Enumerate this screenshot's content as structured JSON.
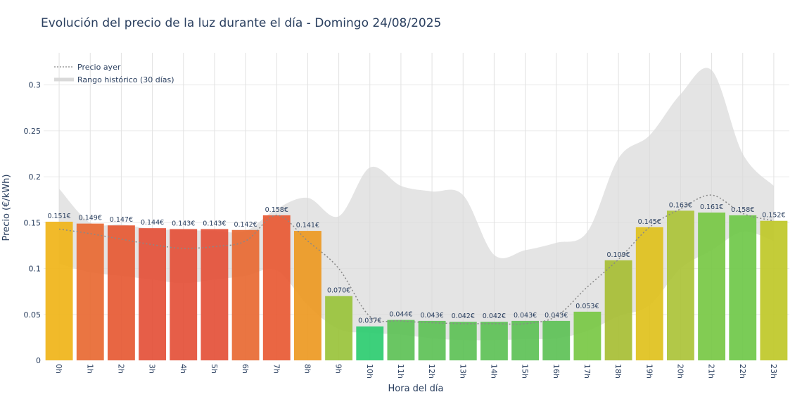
{
  "chart_data": {
    "type": "bar",
    "title": "Evolución del precio de la luz durante el día - Domingo 24/08/2025",
    "xlabel": "Hora del día",
    "ylabel": "Precio (€/kWh)",
    "ylim": [
      0,
      0.335
    ],
    "yticks": [
      0,
      0.05,
      0.1,
      0.15,
      0.2,
      0.25,
      0.3
    ],
    "ytick_labels": [
      "0",
      "0.05",
      "0.1",
      "0.15",
      "0.2",
      "0.25",
      "0.3"
    ],
    "grid": true,
    "legend_position": "top-left",
    "categories": [
      "0h",
      "1h",
      "2h",
      "3h",
      "4h",
      "5h",
      "6h",
      "7h",
      "8h",
      "9h",
      "10h",
      "11h",
      "12h",
      "13h",
      "14h",
      "15h",
      "16h",
      "17h",
      "18h",
      "19h",
      "20h",
      "21h",
      "22h",
      "23h"
    ],
    "values": [
      0.151,
      0.149,
      0.147,
      0.144,
      0.143,
      0.143,
      0.142,
      0.158,
      0.141,
      0.07,
      0.037,
      0.044,
      0.043,
      0.042,
      0.042,
      0.043,
      0.043,
      0.053,
      0.109,
      0.145,
      0.163,
      0.161,
      0.158,
      0.152
    ],
    "value_labels": [
      "0.151€",
      "0.149€",
      "0.147€",
      "0.144€",
      "0.143€",
      "0.143€",
      "0.142€",
      "0.158€",
      "0.141€",
      "0.070€",
      "0.037€",
      "0.044€",
      "0.043€",
      "0.042€",
      "0.042€",
      "0.043€",
      "0.043€",
      "0.053€",
      "0.109€",
      "0.145€",
      "0.163€",
      "0.161€",
      "0.158€",
      "0.152€"
    ],
    "bar_colors": [
      "#f0b51a",
      "#e86a34",
      "#e65a35",
      "#e4523a",
      "#e4523a",
      "#e4523a",
      "#e86a34",
      "#e85a35",
      "#ed9a24",
      "#9ac43c",
      "#2ecc71",
      "#5fc257",
      "#5fc257",
      "#5fc257",
      "#5fc257",
      "#5fc257",
      "#5fc257",
      "#7ac846",
      "#a8be36",
      "#e0c21e",
      "#acc43a",
      "#78c846",
      "#70c84a",
      "#c0c82a"
    ],
    "series": [
      {
        "name": "Precio ayer",
        "style": "dotted-line",
        "color": "#888888",
        "values": [
          0.143,
          0.138,
          0.132,
          0.126,
          0.122,
          0.124,
          0.13,
          0.158,
          0.13,
          0.1,
          0.048,
          0.043,
          0.041,
          0.04,
          0.04,
          0.04,
          0.048,
          0.08,
          0.11,
          0.145,
          0.165,
          0.18,
          0.16,
          0.152
        ]
      },
      {
        "name": "Rango histórico (30 días)",
        "style": "band",
        "color": "#d9d9d9",
        "upper": [
          0.187,
          0.15,
          0.148,
          0.143,
          0.142,
          0.141,
          0.141,
          0.165,
          0.177,
          0.157,
          0.21,
          0.19,
          0.184,
          0.18,
          0.115,
          0.12,
          0.128,
          0.14,
          0.22,
          0.245,
          0.29,
          0.316,
          0.225,
          0.19
        ],
        "lower": [
          0.105,
          0.096,
          0.092,
          0.088,
          0.084,
          0.088,
          0.092,
          0.098,
          0.06,
          0.034,
          0.03,
          0.028,
          0.024,
          0.022,
          0.022,
          0.023,
          0.024,
          0.032,
          0.048,
          0.06,
          0.1,
          0.12,
          0.14,
          0.13
        ]
      }
    ]
  }
}
